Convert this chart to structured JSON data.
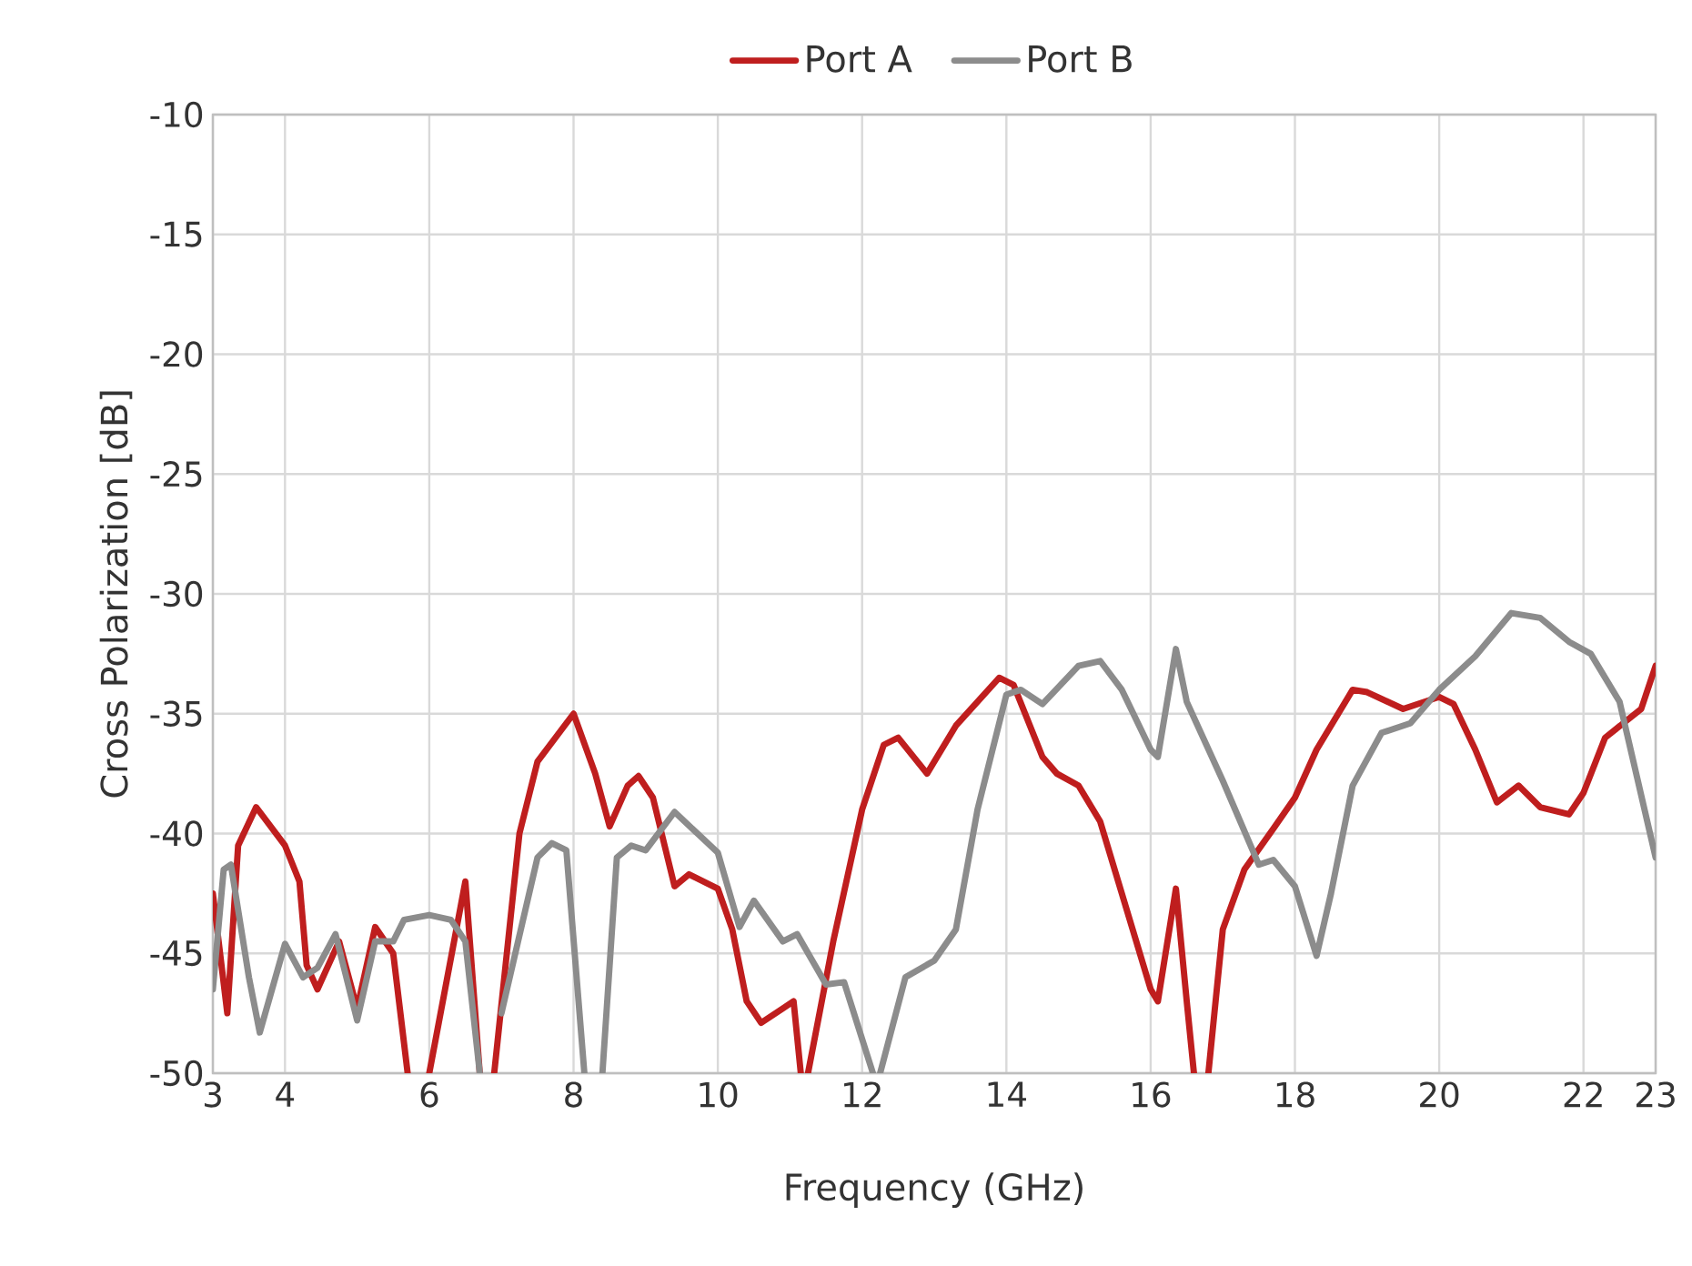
{
  "chart_data": {
    "type": "line",
    "xlabel": "Frequency (GHz)",
    "ylabel": "Cross Polarization [dB]",
    "xlim": [
      3,
      23
    ],
    "xticks": [
      3,
      4,
      6,
      8,
      10,
      12,
      14,
      16,
      18,
      20,
      22,
      23
    ],
    "ylim": [
      -50,
      -10
    ],
    "yticks": [
      -50,
      -45,
      -40,
      -35,
      -30,
      -25,
      -20,
      -15,
      -10
    ],
    "grid": true,
    "legend": "top",
    "line_style": "solid",
    "marker": "none",
    "series": [
      {
        "name": "Port  A",
        "color": "#bf1e1e",
        "x": [
          3.0,
          3.2,
          3.35,
          3.6,
          4.0,
          4.2,
          4.3,
          4.45,
          4.75,
          5.0,
          5.25,
          5.5,
          5.7,
          5.8,
          6.0,
          6.5,
          6.7,
          6.8,
          6.9,
          7.25,
          7.5,
          8.0,
          8.3,
          8.5,
          8.75,
          8.9,
          9.1,
          9.4,
          9.6,
          10.0,
          10.2,
          10.4,
          10.6,
          10.9,
          11.05,
          11.15,
          11.2,
          11.25,
          11.6,
          12.0,
          12.3,
          12.5,
          12.9,
          13.3,
          13.9,
          14.1,
          14.5,
          14.7,
          15.0,
          15.3,
          16.0,
          16.1,
          16.35,
          16.5,
          16.6,
          16.7,
          16.8,
          17.0,
          17.3,
          17.7,
          18.0,
          18.3,
          18.8,
          19.0,
          19.5,
          20.0,
          20.2,
          20.5,
          20.8,
          21.1,
          21.4,
          21.8,
          22.0,
          22.3,
          22.8,
          23.0
        ],
        "values": [
          -42.5,
          -47.5,
          -40.5,
          -38.9,
          -40.5,
          -42,
          -45.5,
          -46.5,
          -44.5,
          -47.3,
          -43.9,
          -45,
          -50,
          null,
          -50,
          -42,
          -50,
          null,
          -50,
          -40,
          -37,
          -35,
          -37.5,
          -39.7,
          -38,
          -37.6,
          -38.5,
          -42.2,
          -41.7,
          -42.3,
          -44,
          -47,
          -47.9,
          -47.3,
          -47,
          -50,
          null,
          -50,
          -44.5,
          -39,
          -36.3,
          -36,
          -37.5,
          -35.5,
          -33.5,
          -33.8,
          -36.8,
          -37.5,
          -38,
          -39.5,
          -46.5,
          -47,
          -42.3,
          -47,
          -50,
          null,
          -50,
          -44,
          -41.5,
          -39.8,
          -38.5,
          -36.5,
          -34,
          -34.1,
          -34.8,
          -34.3,
          -34.6,
          -36.5,
          -38.7,
          -38,
          -38.9,
          -39.2,
          -38.3,
          -36,
          -34.8,
          -33
        ]
      },
      {
        "name": "Port  B",
        "color": "#8c8c8c",
        "x": [
          3.0,
          3.15,
          3.25,
          3.5,
          3.65,
          4.0,
          4.25,
          4.45,
          4.7,
          5.0,
          5.25,
          5.5,
          5.65,
          6.0,
          6.3,
          6.5,
          6.7,
          6.85,
          7.0,
          7.5,
          7.7,
          7.9,
          8.15,
          8.3,
          8.4,
          8.6,
          8.8,
          9.0,
          9.4,
          10.0,
          10.3,
          10.5,
          10.9,
          11.1,
          11.5,
          11.75,
          12.15,
          12.2,
          12.25,
          12.6,
          13.0,
          13.3,
          13.6,
          14.0,
          14.2,
          14.5,
          15.0,
          15.3,
          15.6,
          16.0,
          16.1,
          16.35,
          16.5,
          17.0,
          17.5,
          17.7,
          18.0,
          18.3,
          18.5,
          18.8,
          19.2,
          19.6,
          20.0,
          20.5,
          21.0,
          21.4,
          21.8,
          22.1,
          22.5,
          23.0
        ],
        "values": [
          -46.5,
          -41.5,
          -41.3,
          -46,
          -48.3,
          -44.6,
          -46,
          -45.6,
          -44.2,
          -47.8,
          -44.5,
          -44.5,
          -43.6,
          -43.4,
          -43.6,
          -44.5,
          -50,
          null,
          -47.5,
          -41,
          -40.4,
          -40.7,
          -50,
          null,
          -50,
          -41,
          -40.5,
          -40.7,
          -39.1,
          -40.8,
          -43.9,
          -42.8,
          -44.5,
          -44.2,
          -46.3,
          -46.2,
          -50,
          null,
          -50,
          -46,
          -45.3,
          -44,
          -39,
          -34.2,
          -34,
          -34.6,
          -33,
          -32.8,
          -34,
          -36.5,
          -36.8,
          -32.3,
          -34.5,
          -37.8,
          -41.3,
          -41.1,
          -42.2,
          -45.1,
          -42.5,
          -38,
          -35.8,
          -35.4,
          -34,
          -32.6,
          -30.8,
          -31,
          -32,
          -32.5,
          -34.5,
          -41
        ]
      }
    ]
  }
}
